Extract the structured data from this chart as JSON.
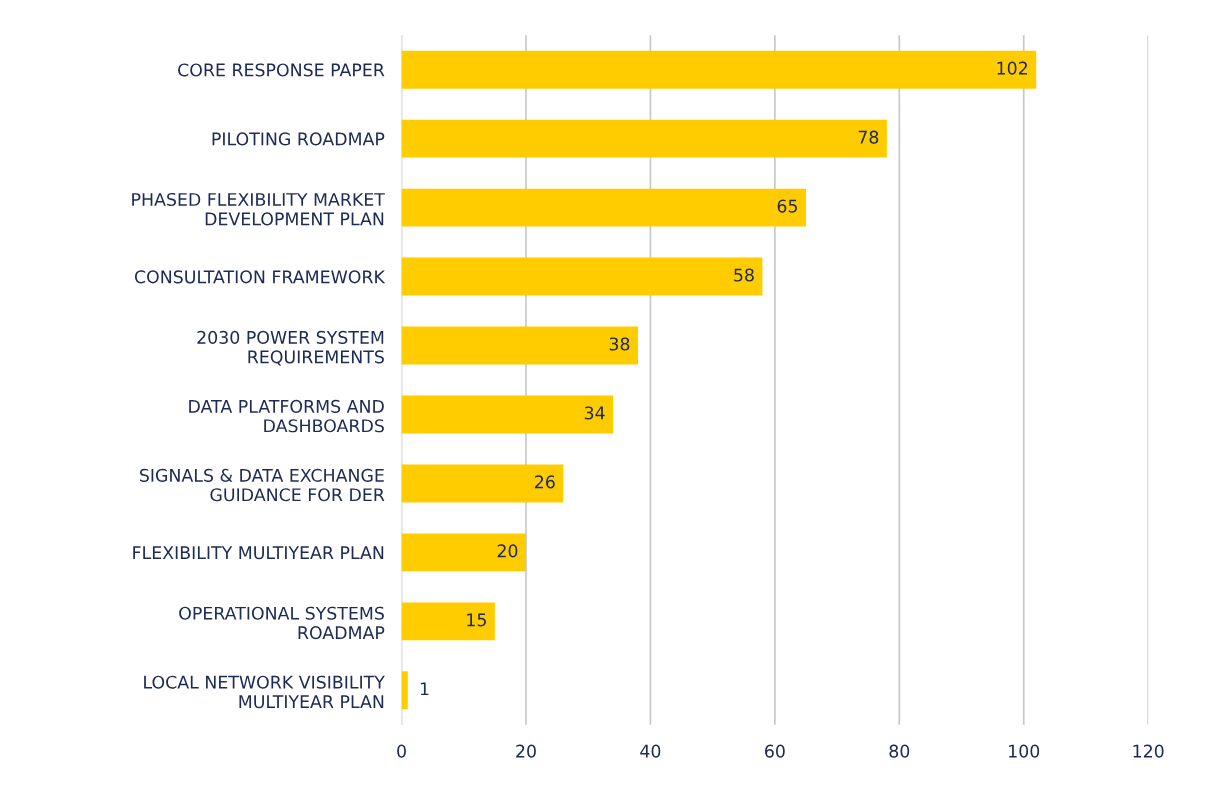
{
  "chart_data": {
    "type": "bar",
    "orientation": "horizontal",
    "categories": [
      "CORE RESPONSE PAPER",
      "PILOTING ROADMAP",
      "PHASED FLEXIBILITY MARKET\nDEVELOPMENT PLAN",
      "CONSULTATION FRAMEWORK",
      "2030 POWER SYSTEM\nREQUIREMENTS",
      "DATA PLATFORMS AND\nDASHBOARDS",
      "SIGNALS & DATA EXCHANGE\nGUIDANCE FOR DER",
      "FLEXIBILITY MULTIYEAR PLAN",
      "OPERATIONAL SYSTEMS\nROADMAP",
      "LOCAL NETWORK VISIBILITY\nMULTIYEAR PLAN"
    ],
    "values": [
      102,
      78,
      65,
      58,
      38,
      34,
      26,
      20,
      15,
      1
    ],
    "color": "#ffcc00",
    "xlim": [
      0,
      120
    ],
    "xticks": [
      0,
      20,
      40,
      60,
      80,
      100,
      120
    ],
    "grid": "x",
    "data_labels": true,
    "legend": false
  }
}
